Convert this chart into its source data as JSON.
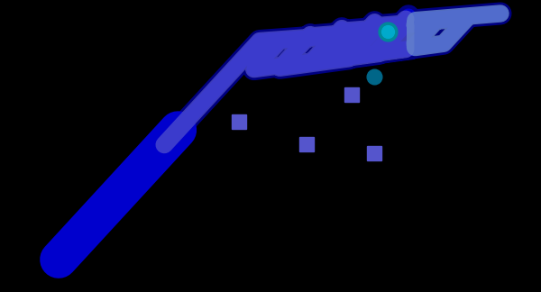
{
  "background_color": "#000000",
  "fig_width": 6.0,
  "fig_height": 3.24,
  "dpi": 100,
  "color_dark_navy": "#000080",
  "color_medium_blue": "#0000CD",
  "color_bright_blue": "#0000FF",
  "color_periwinkle": "#5555CC",
  "color_light_blue": "#6688CC",
  "color_teal": "#008899",
  "lw_thick": 18,
  "lw_medium": 12,
  "lw_thin": 8
}
